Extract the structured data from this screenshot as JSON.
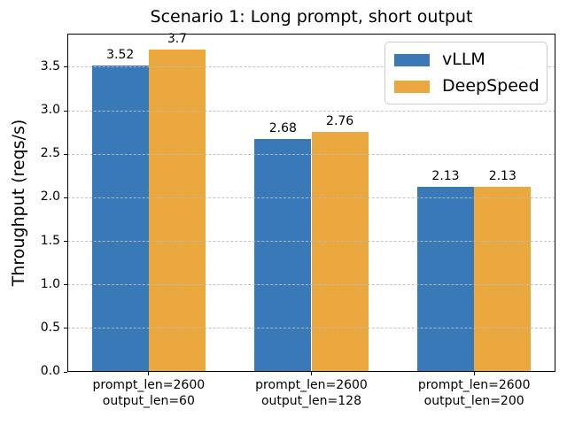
{
  "chart_data": {
    "type": "bar",
    "title": "Scenario 1: Long prompt, short output",
    "ylabel": "Throughput (reqs/s)",
    "xlabel": "",
    "categories": [
      "prompt_len=2600\noutput_len=60",
      "prompt_len=2600\noutput_len=128",
      "prompt_len=2600\noutput_len=200"
    ],
    "series": [
      {
        "name": "vLLM",
        "color": "#3a79b8",
        "values": [
          3.52,
          2.68,
          2.13
        ],
        "labels": [
          "3.52",
          "2.68",
          "2.13"
        ]
      },
      {
        "name": "DeepSpeed",
        "color": "#eba83e",
        "values": [
          3.7,
          2.76,
          2.13
        ],
        "labels": [
          "3.7",
          "2.76",
          "2.13"
        ]
      }
    ],
    "yticks": [
      "0.0",
      "0.5",
      "1.0",
      "1.5",
      "2.0",
      "2.5",
      "3.0",
      "3.5"
    ],
    "ylim": [
      0,
      3.886
    ],
    "bar_width_fraction": 0.35,
    "grid": "horizontal-dashed",
    "legend_position": "upper right"
  }
}
